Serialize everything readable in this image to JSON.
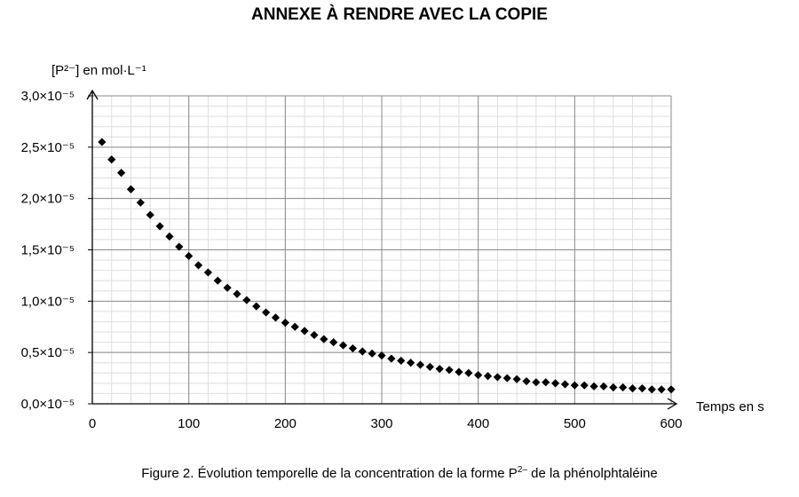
{
  "page": {
    "header": "ANNEXE À RENDRE AVEC LA COPIE",
    "caption_prefix": "Figure 2. Évolution temporelle de la concentration de la forme P",
    "caption_sup": "2–",
    "caption_suffix": " de la phénolphtaléine"
  },
  "chart_data": {
    "type": "scatter",
    "ylabel": "[P²⁻] en mol·L⁻¹",
    "xlabel": "Temps en s",
    "xlim": [
      0,
      600
    ],
    "ylim": [
      0,
      3e-05
    ],
    "x_ticks": [
      0,
      100,
      200,
      300,
      400,
      500,
      600
    ],
    "x_tick_labels": [
      "0",
      "100",
      "200",
      "300",
      "400",
      "500",
      "600"
    ],
    "y_ticks": [
      0,
      5e-06,
      1e-05,
      1.5e-05,
      2e-05,
      2.5e-05,
      3e-05
    ],
    "y_tick_labels": [
      "0,0×10⁻⁵",
      "0,5×10⁻⁵",
      "1,0×10⁻⁵",
      "1,5×10⁻⁵",
      "2,0×10⁻⁵",
      "2,5×10⁻⁵",
      "3,0×10⁻⁵"
    ],
    "grid": {
      "major": true,
      "minor": true
    },
    "marker": {
      "shape": "diamond",
      "color": "#000000"
    },
    "points": [
      {
        "x": 10,
        "y": 2.55e-05
      },
      {
        "x": 20,
        "y": 2.38e-05
      },
      {
        "x": 30,
        "y": 2.25e-05
      },
      {
        "x": 40,
        "y": 2.09e-05
      },
      {
        "x": 50,
        "y": 1.96e-05
      },
      {
        "x": 60,
        "y": 1.84e-05
      },
      {
        "x": 70,
        "y": 1.73e-05
      },
      {
        "x": 80,
        "y": 1.63e-05
      },
      {
        "x": 90,
        "y": 1.53e-05
      },
      {
        "x": 100,
        "y": 1.44e-05
      },
      {
        "x": 110,
        "y": 1.35e-05
      },
      {
        "x": 120,
        "y": 1.28e-05
      },
      {
        "x": 130,
        "y": 1.2e-05
      },
      {
        "x": 140,
        "y": 1.13e-05
      },
      {
        "x": 150,
        "y": 1.07e-05
      },
      {
        "x": 160,
        "y": 1.01e-05
      },
      {
        "x": 170,
        "y": 9.5e-06
      },
      {
        "x": 180,
        "y": 8.9e-06
      },
      {
        "x": 190,
        "y": 8.4e-06
      },
      {
        "x": 200,
        "y": 7.9e-06
      },
      {
        "x": 210,
        "y": 7.5e-06
      },
      {
        "x": 220,
        "y": 7.1e-06
      },
      {
        "x": 230,
        "y": 6.7e-06
      },
      {
        "x": 240,
        "y": 6.3e-06
      },
      {
        "x": 250,
        "y": 6e-06
      },
      {
        "x": 260,
        "y": 5.7e-06
      },
      {
        "x": 270,
        "y": 5.4e-06
      },
      {
        "x": 280,
        "y": 5.1e-06
      },
      {
        "x": 290,
        "y": 4.9e-06
      },
      {
        "x": 300,
        "y": 4.7e-06
      },
      {
        "x": 310,
        "y": 4.4e-06
      },
      {
        "x": 320,
        "y": 4.2e-06
      },
      {
        "x": 330,
        "y": 4e-06
      },
      {
        "x": 340,
        "y": 3.8e-06
      },
      {
        "x": 350,
        "y": 3.6e-06
      },
      {
        "x": 360,
        "y": 3.4e-06
      },
      {
        "x": 370,
        "y": 3.3e-06
      },
      {
        "x": 380,
        "y": 3.1e-06
      },
      {
        "x": 390,
        "y": 3e-06
      },
      {
        "x": 400,
        "y": 2.8e-06
      },
      {
        "x": 410,
        "y": 2.7e-06
      },
      {
        "x": 420,
        "y": 2.6e-06
      },
      {
        "x": 430,
        "y": 2.5e-06
      },
      {
        "x": 440,
        "y": 2.4e-06
      },
      {
        "x": 450,
        "y": 2.2e-06
      },
      {
        "x": 460,
        "y": 2.1e-06
      },
      {
        "x": 470,
        "y": 2.1e-06
      },
      {
        "x": 480,
        "y": 2e-06
      },
      {
        "x": 490,
        "y": 1.9e-06
      },
      {
        "x": 500,
        "y": 1.8e-06
      },
      {
        "x": 510,
        "y": 1.8e-06
      },
      {
        "x": 520,
        "y": 1.7e-06
      },
      {
        "x": 530,
        "y": 1.7e-06
      },
      {
        "x": 540,
        "y": 1.6e-06
      },
      {
        "x": 550,
        "y": 1.6e-06
      },
      {
        "x": 560,
        "y": 1.5e-06
      },
      {
        "x": 570,
        "y": 1.5e-06
      },
      {
        "x": 580,
        "y": 1.4e-06
      },
      {
        "x": 590,
        "y": 1.4e-06
      },
      {
        "x": 600,
        "y": 1.4e-06
      }
    ]
  }
}
